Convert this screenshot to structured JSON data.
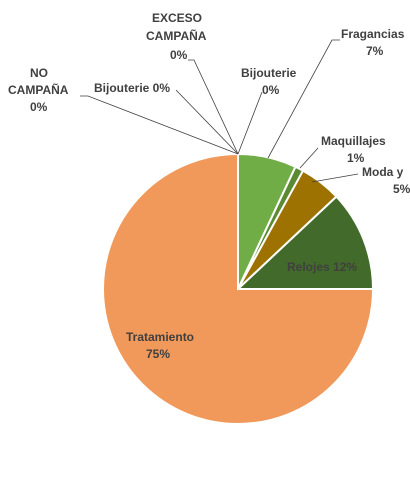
{
  "chart_data": {
    "type": "pie",
    "title": "",
    "slices": [
      {
        "label": "Fragancias",
        "value": 7,
        "value_label": "7%",
        "color": "#70ad47"
      },
      {
        "label": "Maquillajes",
        "value": 1,
        "value_label": "1%",
        "color": "#5a8a32"
      },
      {
        "label": "Moda y",
        "value": 5,
        "value_label": "5%",
        "color": "#9e7200"
      },
      {
        "label": "Relojes",
        "value": 12,
        "value_label": "Relojes 12%",
        "color": "#426a2a"
      },
      {
        "label": "Tratamiento",
        "value": 75,
        "value_label": "75%",
        "color": "#f0995a"
      },
      {
        "label": "NO CAMPAÑA",
        "value": 0,
        "value_label": "0%",
        "color": "#a5a5a5"
      },
      {
        "label": "Bijouterie",
        "value": 0,
        "value_label": "Bijouterie 0%",
        "color": "#ffc000"
      },
      {
        "label": "EXCESO CAMPAÑA",
        "value": 0,
        "value_label": "0%",
        "color": "#5b9bd5"
      },
      {
        "label": "Bijouterie",
        "value": 0,
        "value_label": "0%",
        "color": "#4472c4"
      }
    ]
  },
  "labels": {
    "fragancias_name": "Fragancias",
    "fragancias_pct": "7%",
    "maquillajes_name": "Maquillajes",
    "maquillajes_pct": "1%",
    "moda_name": "Moda y",
    "moda_pct": "5%",
    "relojes": "Relojes 12%",
    "tratamiento_name": "Tratamiento",
    "tratamiento_pct": "75%",
    "no_campana_line1": "NO",
    "no_campana_line2": "CAMPAÑA",
    "no_campana_pct": "0%",
    "bijouterie_left": "Bijouterie 0%",
    "exceso_line1": "EXCESO",
    "exceso_line2": "CAMPAÑA",
    "exceso_pct": "0%",
    "bijouterie_top_name": "Bijouterie",
    "bijouterie_top_pct": "0%"
  }
}
